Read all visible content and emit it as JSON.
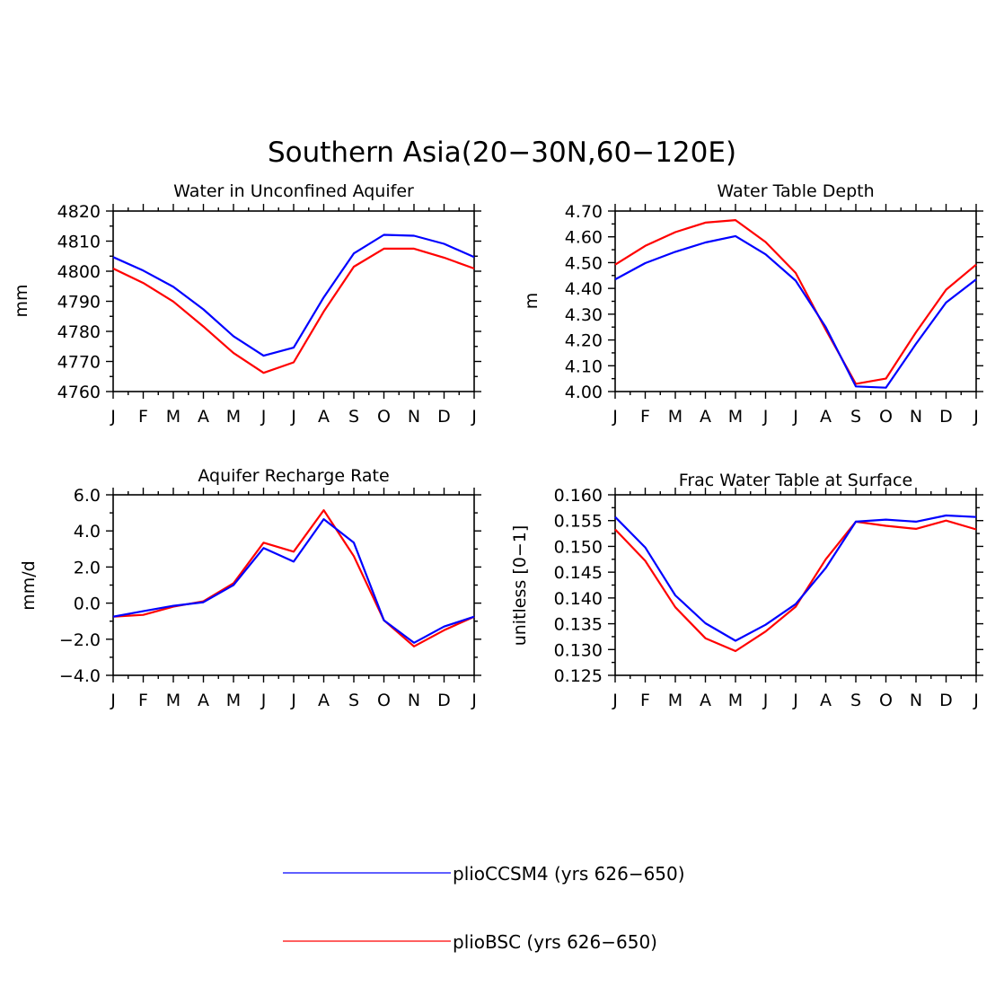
{
  "figure_title": "Southern Asia(20−30N,60−120E)",
  "colors": {
    "series_1": "#0000ff",
    "series_2": "#ff0000"
  },
  "chart_data": [
    {
      "type": "line",
      "title": "Water in Unconfined Aquifer",
      "xlabel": "",
      "ylabel": "mm",
      "categories": [
        "J",
        "F",
        "M",
        "A",
        "M",
        "J",
        "J",
        "A",
        "S",
        "O",
        "N",
        "D",
        "J"
      ],
      "ylim": [
        4760,
        4820
      ],
      "yticks": [
        4760,
        4770,
        4780,
        4790,
        4800,
        4810,
        4820
      ],
      "ytick_labels": [
        "4760",
        "4770",
        "4780",
        "4790",
        "4800",
        "4810",
        "4820"
      ],
      "series": [
        {
          "name": "plioCCSM4 (yrs 626−650)",
          "values": [
            4804.7,
            4800.2,
            4794.8,
            4787.3,
            4778.4,
            4771.9,
            4774.6,
            4791.3,
            4805.9,
            4812.1,
            4811.8,
            4809.1,
            4804.7
          ]
        },
        {
          "name": "plioBSC (yrs 626−650)",
          "values": [
            4800.9,
            4796.1,
            4789.9,
            4781.6,
            4772.8,
            4766.2,
            4769.7,
            4786.6,
            4801.5,
            4807.5,
            4807.5,
            4804.5,
            4800.9
          ]
        }
      ]
    },
    {
      "type": "line",
      "title": "Water Table Depth",
      "xlabel": "",
      "ylabel": "m",
      "categories": [
        "J",
        "F",
        "M",
        "A",
        "M",
        "J",
        "J",
        "A",
        "S",
        "O",
        "N",
        "D",
        "J"
      ],
      "ylim": [
        4.0,
        4.7
      ],
      "yticks": [
        4.0,
        4.1,
        4.2,
        4.3,
        4.4,
        4.5,
        4.6,
        4.7
      ],
      "ytick_labels": [
        "4.00",
        "4.10",
        "4.20",
        "4.30",
        "4.40",
        "4.50",
        "4.60",
        "4.70"
      ],
      "series": [
        {
          "name": "plioCCSM4 (yrs 626−650)",
          "values": [
            4.435,
            4.498,
            4.542,
            4.578,
            4.603,
            4.532,
            4.43,
            4.25,
            4.02,
            4.015,
            4.185,
            4.345,
            4.435
          ]
        },
        {
          "name": "plioBSC (yrs 626−650)",
          "values": [
            4.492,
            4.565,
            4.618,
            4.655,
            4.665,
            4.58,
            4.46,
            4.24,
            4.03,
            4.05,
            4.23,
            4.395,
            4.492
          ]
        }
      ]
    },
    {
      "type": "line",
      "title": "Aquifer Recharge Rate",
      "xlabel": "",
      "ylabel": "mm/d",
      "categories": [
        "J",
        "F",
        "M",
        "A",
        "M",
        "J",
        "J",
        "A",
        "S",
        "O",
        "N",
        "D",
        "J"
      ],
      "ylim": [
        -4.0,
        6.0
      ],
      "yticks": [
        -4,
        -2,
        0,
        2,
        4,
        6
      ],
      "ytick_labels": [
        "−4.0",
        "−2.0",
        "0.0",
        "2.0",
        "4.0",
        "6.0"
      ],
      "series": [
        {
          "name": "plioCCSM4 (yrs 626−650)",
          "values": [
            -0.75,
            -0.45,
            -0.15,
            0.05,
            1.0,
            3.05,
            2.3,
            4.65,
            3.35,
            -0.95,
            -2.2,
            -1.3,
            -0.75
          ]
        },
        {
          "name": "plioBSC (yrs 626−650)",
          "values": [
            -0.75,
            -0.65,
            -0.2,
            0.1,
            1.1,
            3.35,
            2.85,
            5.15,
            2.6,
            -0.95,
            -2.4,
            -1.5,
            -0.75
          ]
        }
      ]
    },
    {
      "type": "line",
      "title": "Frac Water Table at Surface",
      "xlabel": "",
      "ylabel": "unitless [0−1]",
      "categories": [
        "J",
        "F",
        "M",
        "A",
        "M",
        "J",
        "J",
        "A",
        "S",
        "O",
        "N",
        "D",
        "J"
      ],
      "ylim": [
        0.125,
        0.16
      ],
      "yticks": [
        0.125,
        0.13,
        0.135,
        0.14,
        0.145,
        0.15,
        0.155,
        0.16
      ],
      "ytick_labels": [
        "0.125",
        "0.130",
        "0.135",
        "0.140",
        "0.145",
        "0.150",
        "0.155",
        "0.160"
      ],
      "series": [
        {
          "name": "plioCCSM4 (yrs 626−650)",
          "values": [
            0.1557,
            0.1498,
            0.1405,
            0.1351,
            0.1317,
            0.1348,
            0.1388,
            0.1458,
            0.1548,
            0.1552,
            0.1548,
            0.156,
            0.1557
          ]
        },
        {
          "name": "plioBSC (yrs 626−650)",
          "values": [
            0.1533,
            0.1472,
            0.1382,
            0.1322,
            0.1297,
            0.1335,
            0.1383,
            0.1475,
            0.1548,
            0.154,
            0.1534,
            0.155,
            0.1533
          ]
        }
      ]
    }
  ],
  "legend": [
    {
      "label": "plioCCSM4 (yrs 626−650)"
    },
    {
      "label": "plioBSC (yrs 626−650)"
    }
  ]
}
